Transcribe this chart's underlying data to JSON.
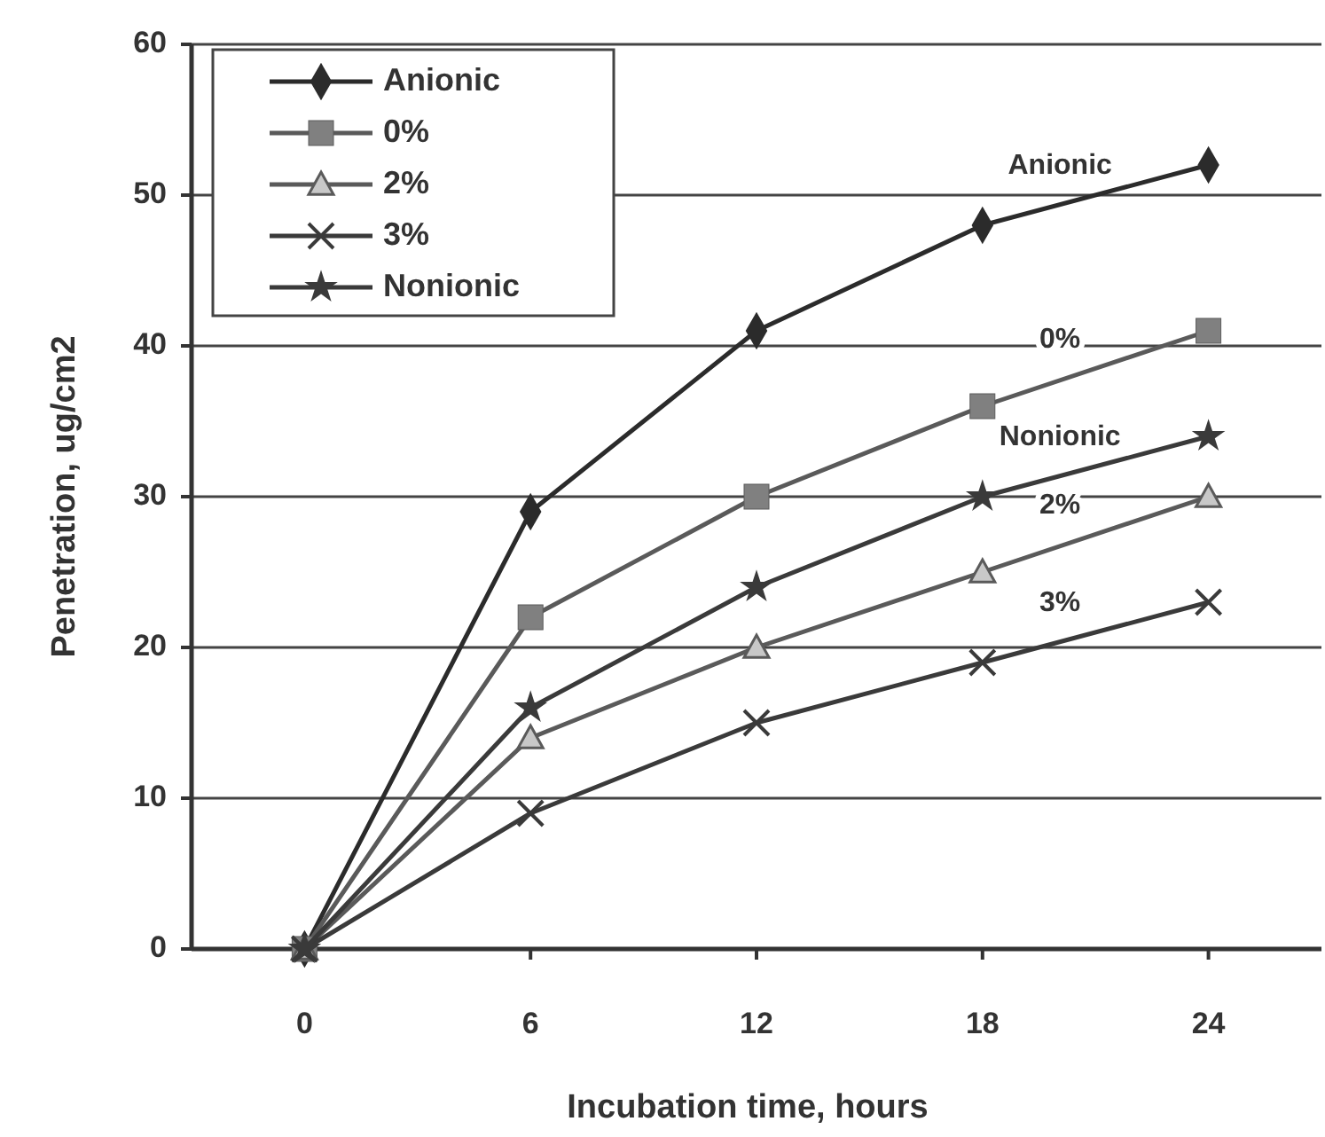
{
  "chart_data": {
    "type": "line",
    "xlabel": "Incubation time, hours",
    "ylabel": "Penetration, ug/cm2",
    "x": [
      0,
      6,
      12,
      18,
      24
    ],
    "xlim": [
      -3,
      27
    ],
    "xticks": [
      0,
      6,
      12,
      18,
      24
    ],
    "ylim": [
      0,
      60
    ],
    "yticks": [
      0,
      10,
      20,
      30,
      40,
      50,
      60
    ],
    "grid": "y",
    "legend": "top left",
    "line_style": "solid",
    "series": [
      {
        "name": "Anionic",
        "color": "#2b2b2b",
        "marker": "diamond",
        "values": [
          0,
          29,
          41,
          48,
          52
        ]
      },
      {
        "name": "0%",
        "color": "#5a5a5a",
        "marker": "square",
        "values": [
          0,
          22,
          30,
          36,
          41
        ]
      },
      {
        "name": "2%",
        "color": "#5a5a5a",
        "marker": "triangle",
        "values": [
          0,
          14,
          20,
          25,
          30
        ]
      },
      {
        "name": "3%",
        "color": "#3a3a3a",
        "marker": "cross",
        "values": [
          0,
          9,
          15,
          19,
          23
        ]
      },
      {
        "name": "Nonionic",
        "color": "#3a3a3a",
        "marker": "star",
        "values": [
          0,
          16,
          24,
          30,
          34
        ]
      }
    ]
  }
}
